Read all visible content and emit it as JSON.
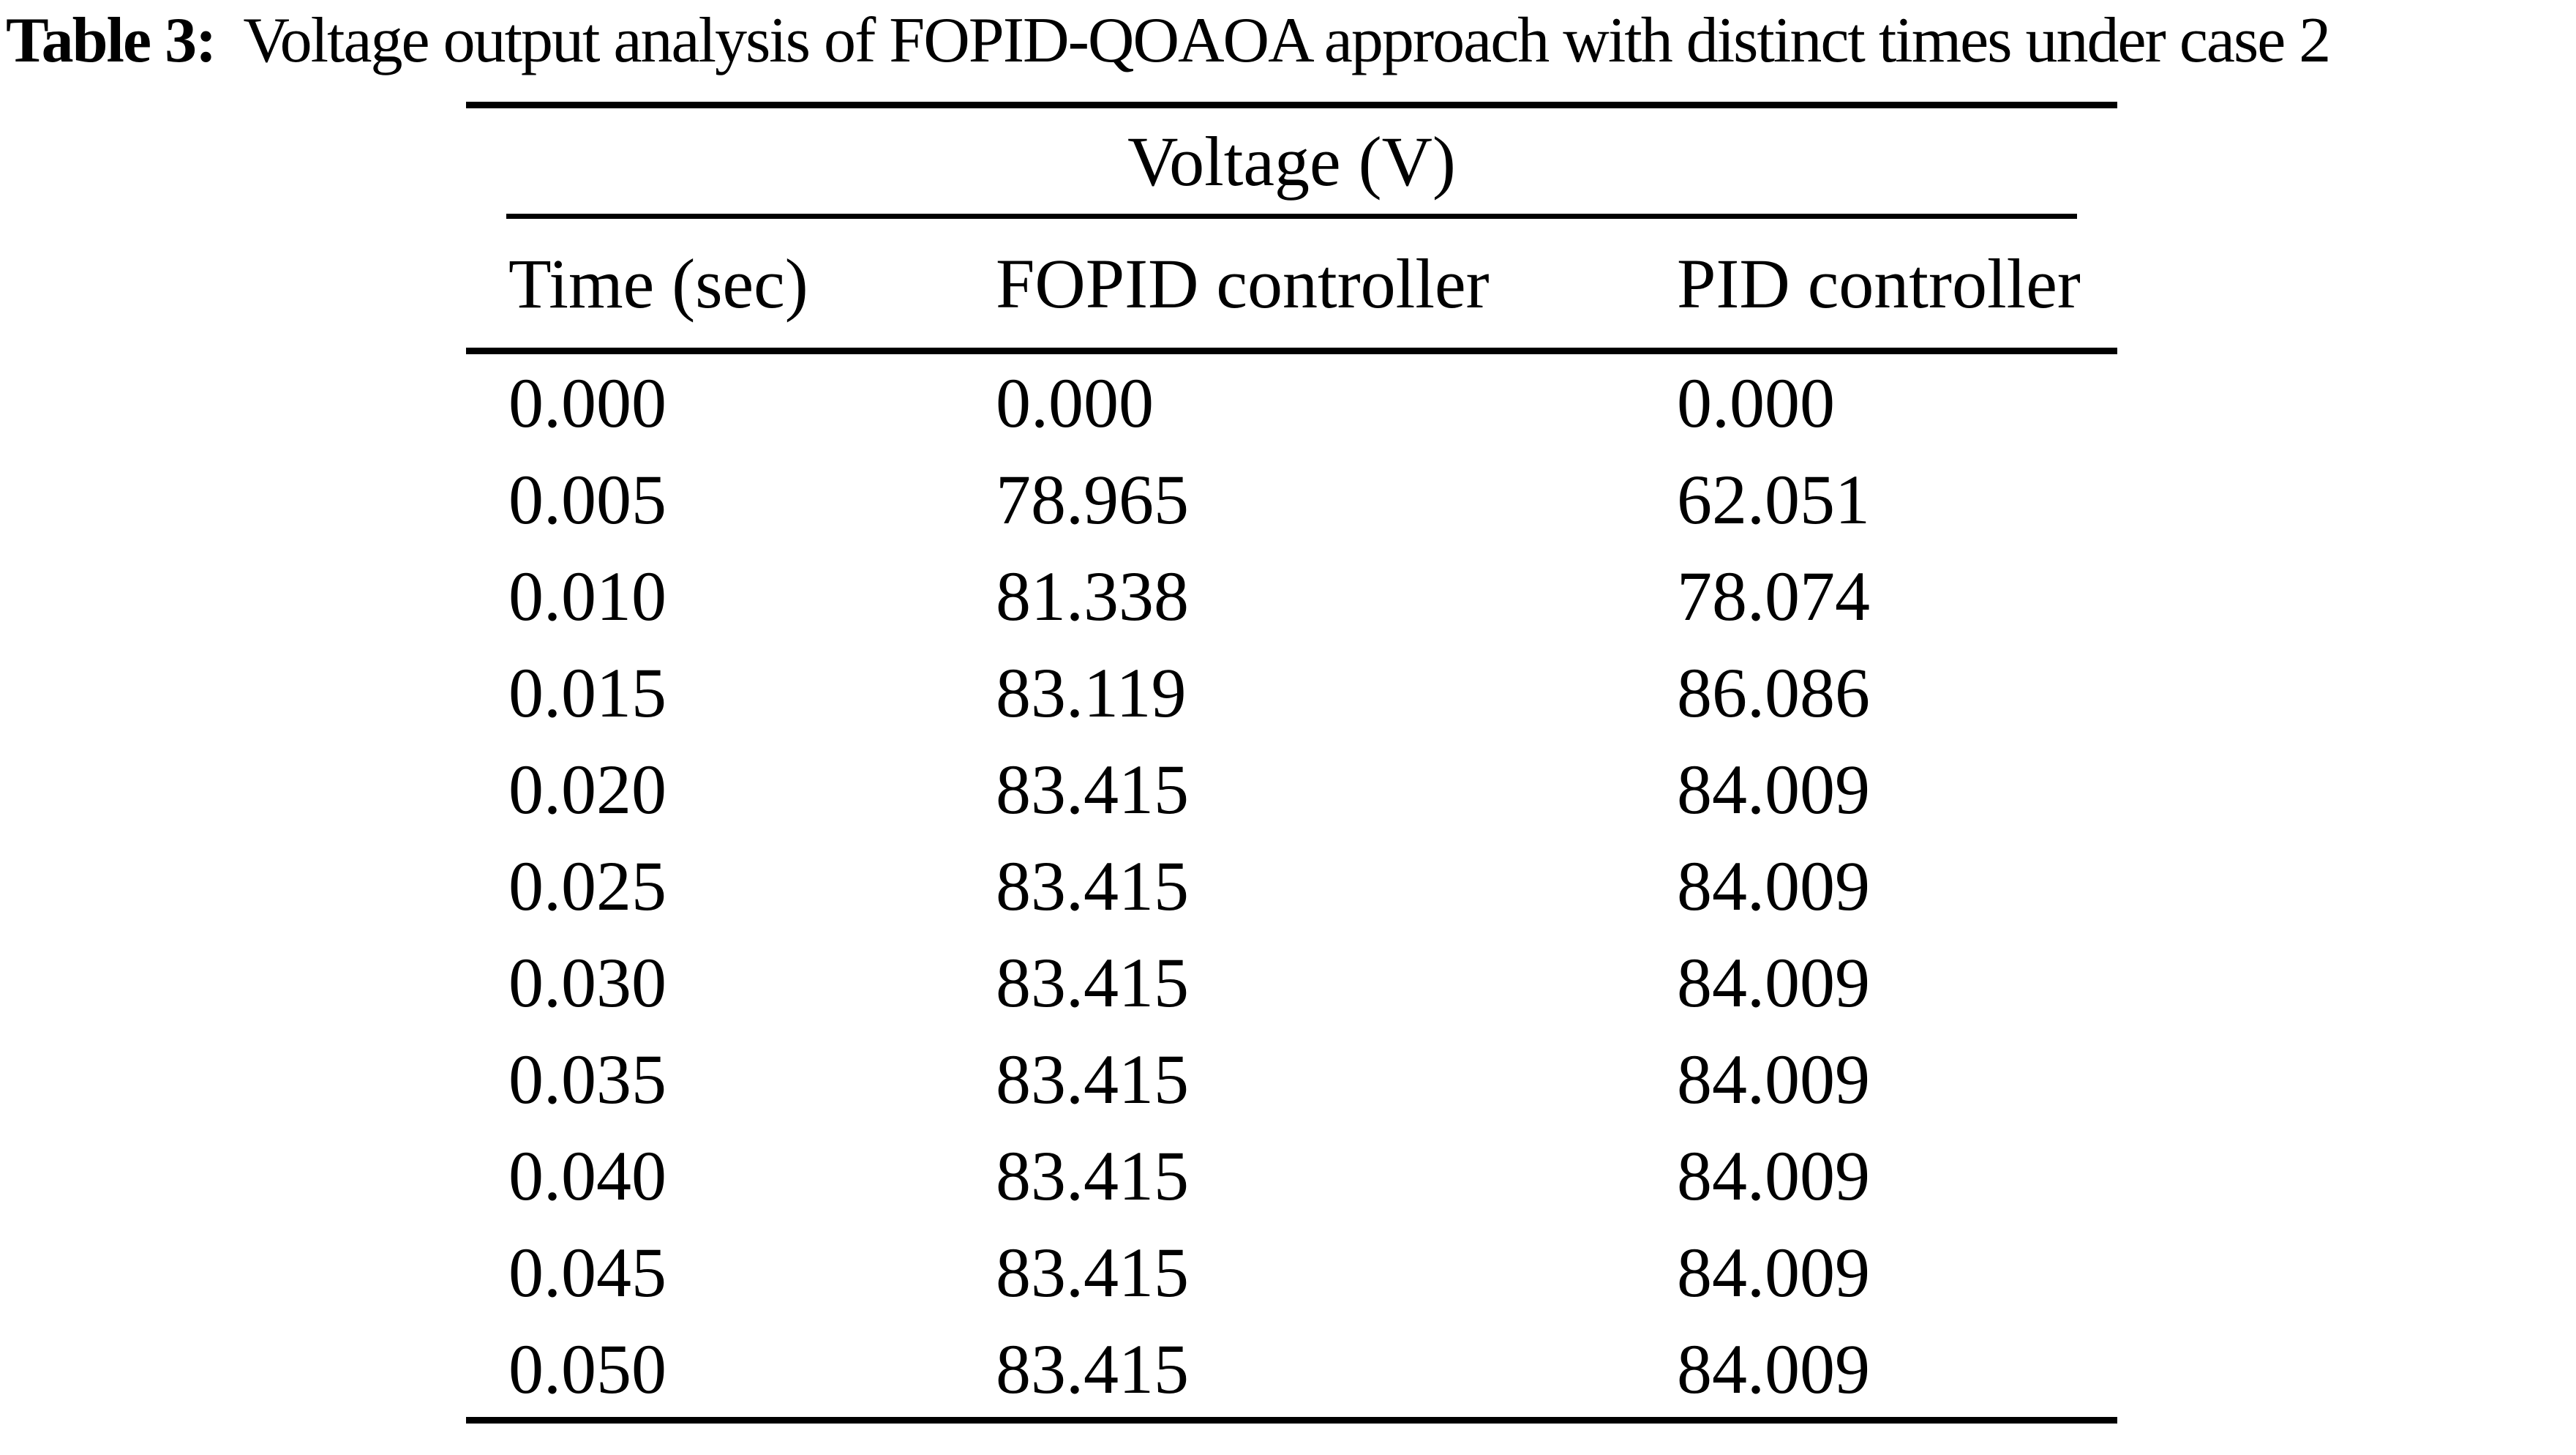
{
  "table": {
    "caption": {
      "label": "Table 3:",
      "text": "Voltage output analysis of FOPID-QOAOA approach with distinct times under case 2"
    },
    "group_header": "Voltage (V)",
    "columns": [
      "Time (sec)",
      "FOPID controller",
      "PID controller"
    ],
    "rows": [
      [
        "0.000",
        "0.000",
        "0.000"
      ],
      [
        "0.005",
        "78.965",
        "62.051"
      ],
      [
        "0.010",
        "81.338",
        "78.074"
      ],
      [
        "0.015",
        "83.119",
        "86.086"
      ],
      [
        "0.020",
        "83.415",
        "84.009"
      ],
      [
        "0.025",
        "83.415",
        "84.009"
      ],
      [
        "0.030",
        "83.415",
        "84.009"
      ],
      [
        "0.035",
        "83.415",
        "84.009"
      ],
      [
        "0.040",
        "83.415",
        "84.009"
      ],
      [
        "0.045",
        "83.415",
        "84.009"
      ],
      [
        "0.050",
        "83.415",
        "84.009"
      ]
    ],
    "colors": {
      "text": "#000000",
      "background": "#ffffff",
      "rule": "#000000"
    }
  }
}
